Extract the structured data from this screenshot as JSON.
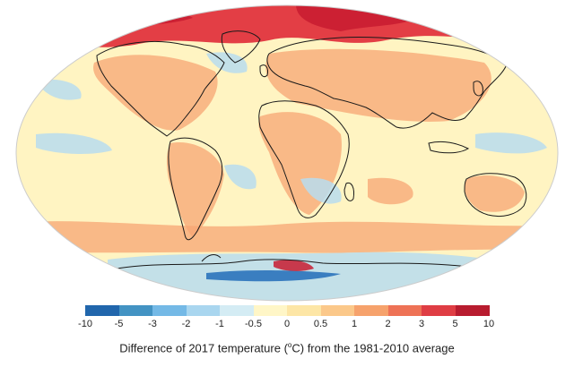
{
  "legend": {
    "tick_labels": [
      "-10",
      "-5",
      "-3",
      "-2",
      "-1",
      "-0.5",
      "0",
      "0.5",
      "1",
      "2",
      "3",
      "5",
      "10"
    ],
    "colors": [
      "#2166ac",
      "#4393c3",
      "#74b9e6",
      "#a9d6ef",
      "#d4ecf4",
      "#fff6c7",
      "#fde6a6",
      "#fbc88a",
      "#f6a26c",
      "#ee7256",
      "#df3d44",
      "#b81c2f"
    ]
  },
  "caption": {
    "prefix": "Difference of 2017 temperature (",
    "sup": "o",
    "unit": "C) from the 1981-2010 average"
  },
  "map_colors": {
    "ocean_base": "#fff4c2",
    "arctic": "#e33e45",
    "warm": "#f7a673",
    "cool": "#b9dcef",
    "coast": "#1a1a1a"
  }
}
